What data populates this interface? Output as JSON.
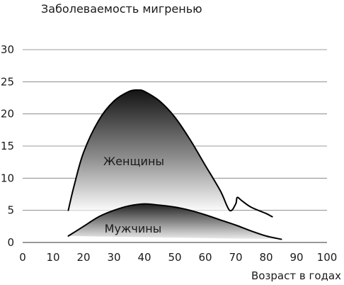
{
  "chart_data": {
    "type": "area",
    "title": "Заболеваемость мигренью",
    "xlabel": "Возраст в годах",
    "ylabel": "",
    "xlim": [
      0,
      100
    ],
    "ylim": [
      0,
      30
    ],
    "xticks": [
      0,
      10,
      20,
      30,
      40,
      50,
      60,
      70,
      80,
      90,
      100
    ],
    "yticks": [
      0,
      5,
      10,
      15,
      20,
      25,
      30
    ],
    "grid": "horizontal",
    "series": [
      {
        "name": "Женщины",
        "x": [
          15,
          17,
          20,
          25,
          30,
          35,
          38,
          40,
          45,
          50,
          55,
          60,
          65,
          68,
          70,
          70.5,
          72,
          75,
          80,
          82
        ],
        "y": [
          5,
          9,
          14,
          19,
          22,
          23.5,
          23.7,
          23.5,
          22,
          19.5,
          16,
          12,
          8,
          5,
          6,
          7,
          6.5,
          5.5,
          4.5,
          4
        ],
        "color": "#000000"
      },
      {
        "name": "Мужчины",
        "x": [
          15,
          20,
          25,
          30,
          35,
          40,
          45,
          50,
          55,
          60,
          65,
          70,
          75,
          80,
          85
        ],
        "y": [
          1,
          2.5,
          4,
          5,
          5.7,
          6,
          5.8,
          5.5,
          5,
          4.3,
          3.5,
          2.7,
          1.8,
          1,
          0.5
        ],
        "color": "#000000"
      }
    ]
  }
}
